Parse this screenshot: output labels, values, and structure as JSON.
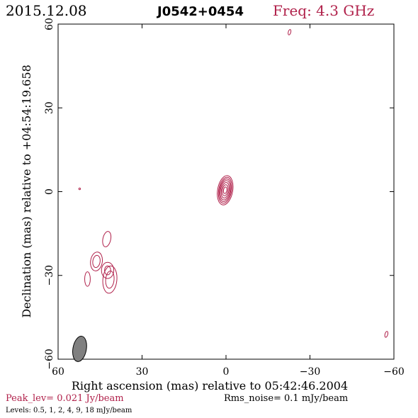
{
  "header": {
    "date": "2015.12.08",
    "source": "J0542+0454",
    "freq": "Freq: 4.3 GHz"
  },
  "footer": {
    "peak": "Peak_lev=  0.021 Jy/beam",
    "rms": "Rms_noise=   0.1 mJy/beam",
    "levels": "Levels: 0.5,    1,    2,    4,    9,   18 mJy/beam"
  },
  "colors": {
    "contour": "#b0204a",
    "frame": "#000000",
    "title_accent": "#b0204a",
    "beam_fill": "#808080"
  },
  "chart_data": {
    "type": "contour",
    "xlabel": "Right ascension (mas) relative to 05:42:46.2004",
    "ylabel": "Declination (mas) relative to +04:54:19.658",
    "xlim": [
      60,
      -60
    ],
    "ylim": [
      -60,
      60
    ],
    "x_ticks": [
      60,
      30,
      0,
      -30,
      -60
    ],
    "y_ticks": [
      60,
      30,
      0,
      -30,
      -60
    ],
    "x_tick_labels": [
      "60",
      "30",
      "0",
      "−30",
      "−60"
    ],
    "y_tick_labels": [
      "60",
      "30",
      "0",
      "−30",
      "−60"
    ],
    "levels_mJy_per_beam": [
      0.5,
      1,
      2,
      4,
      9,
      18
    ],
    "peak_Jy_per_beam": 0.021,
    "rms_mJy_per_beam": 0.1,
    "components": [
      {
        "x": 0.3,
        "y": 0.5,
        "rx": [
          2.7,
          2.3,
          2.0,
          1.7,
          1.35,
          1.0,
          0.6
        ],
        "ry": [
          5.3,
          4.7,
          4.1,
          3.5,
          2.8,
          2.0,
          1.2
        ],
        "angle": 10
      },
      {
        "x": 41.5,
        "y": -31.5,
        "rx": [
          2.5,
          1.5
        ],
        "ry": [
          4.9,
          3.1
        ],
        "angle": 5
      },
      {
        "x": 42.3,
        "y": -28.2,
        "rx": [
          2.2,
          1.1
        ],
        "ry": [
          2.9,
          1.6
        ],
        "angle": 0
      },
      {
        "x": 46.3,
        "y": -25.0,
        "rx": [
          2.1,
          1.3
        ],
        "ry": [
          3.4,
          2.2
        ],
        "angle": 8
      },
      {
        "x": 42.6,
        "y": -17.0,
        "rx": [
          1.4
        ],
        "ry": [
          2.8
        ],
        "angle": 12
      },
      {
        "x": 49.5,
        "y": -31.3,
        "rx": [
          1.0
        ],
        "ry": [
          2.6
        ],
        "angle": 0
      },
      {
        "x": -22.7,
        "y": 57.1,
        "rx": [
          0.45
        ],
        "ry": [
          1.0
        ],
        "angle": 15
      },
      {
        "x": -57.3,
        "y": -51.1,
        "rx": [
          0.5
        ],
        "ry": [
          1.1
        ],
        "angle": 15
      },
      {
        "x": 52.3,
        "y": 1.0,
        "rx": [
          0.3
        ],
        "ry": [
          0.3
        ],
        "angle": 0
      }
    ],
    "beam": {
      "x": 52.3,
      "y": -56.3,
      "rx": 2.4,
      "ry": 4.6,
      "angle": 10
    }
  }
}
